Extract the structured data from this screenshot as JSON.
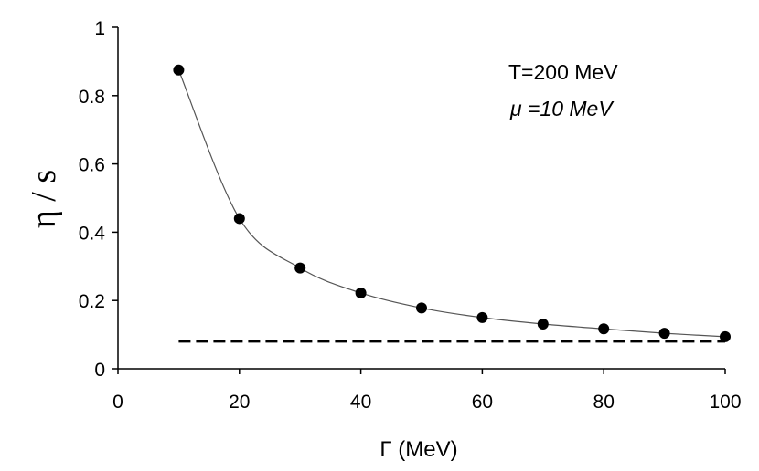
{
  "chart_data": {
    "type": "scatter",
    "title": "",
    "xlabel": "Γ (MeV)",
    "ylabel": "η / s",
    "xlim": [
      0,
      100
    ],
    "ylim": [
      0,
      1
    ],
    "xticks": [
      0,
      20,
      40,
      60,
      80,
      100
    ],
    "xtick_labels": [
      "0",
      "20",
      "40",
      "60",
      "80",
      "100"
    ],
    "yticks": [
      0,
      0.2,
      0.4,
      0.6,
      0.8,
      1
    ],
    "ytick_labels": [
      "0",
      "0.2",
      "0.4",
      "0.6",
      "0.8",
      "1"
    ],
    "grid": false,
    "legend": "none",
    "annotations": [
      "T=200 MeV",
      "μ =10 MeV"
    ],
    "series": [
      {
        "style": "markers with smooth fitted curve",
        "x": [
          10,
          20,
          30,
          40,
          50,
          60,
          70,
          80,
          90,
          100
        ],
        "y": [
          0.875,
          0.44,
          0.295,
          0.222,
          0.178,
          0.15,
          0.131,
          0.117,
          0.104,
          0.094
        ]
      },
      {
        "style": "dashed horizontal line",
        "x": [
          10,
          100
        ],
        "y": [
          0.08,
          0.08
        ]
      }
    ],
    "colors": {
      "axis": "#000000",
      "marker": "#000000",
      "line": "#000000"
    }
  }
}
